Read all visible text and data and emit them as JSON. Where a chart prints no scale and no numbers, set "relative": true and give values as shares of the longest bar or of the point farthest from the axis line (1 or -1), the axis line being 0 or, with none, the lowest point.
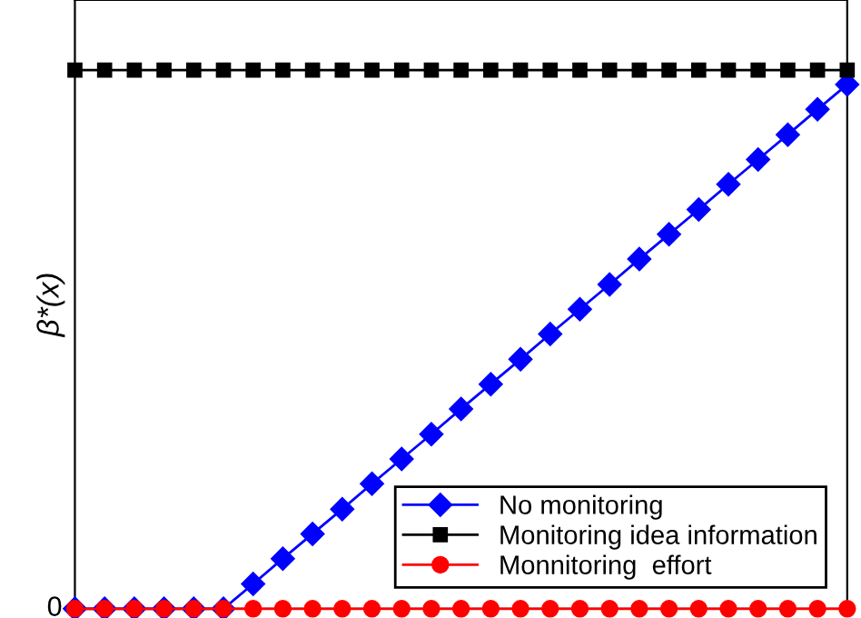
{
  "chart_data": {
    "type": "line",
    "ylabel": "β*(x)",
    "relative": true,
    "annotations": [
      "0"
    ],
    "categories": [
      null,
      null,
      null,
      null,
      null,
      null,
      null,
      null,
      null,
      null,
      null,
      null,
      null,
      null,
      null,
      null,
      null,
      null,
      null,
      null,
      null,
      null,
      null,
      null,
      null,
      null,
      null
    ],
    "series": [
      {
        "name": "No monitoring",
        "color": "#0000ff",
        "marker": "diamond",
        "values": [
          0,
          0,
          0,
          0,
          0,
          0,
          0.046,
          0.093,
          0.139,
          0.185,
          0.232,
          0.278,
          0.324,
          0.371,
          0.417,
          0.463,
          0.51,
          0.556,
          0.602,
          0.649,
          0.695,
          0.741,
          0.788,
          0.834,
          0.88,
          0.927,
          0.973
        ]
      },
      {
        "name": "Monitoring idea information",
        "color": "#000000",
        "marker": "square",
        "values": [
          1,
          1,
          1,
          1,
          1,
          1,
          1,
          1,
          1,
          1,
          1,
          1,
          1,
          1,
          1,
          1,
          1,
          1,
          1,
          1,
          1,
          1,
          1,
          1,
          1,
          1,
          1
        ]
      },
      {
        "name": "Monnitoring  effort",
        "color": "#ff0000",
        "marker": "circle",
        "values": [
          0,
          0,
          0,
          0,
          0,
          0,
          0,
          0,
          0,
          0,
          0,
          0,
          0,
          0,
          0,
          0,
          0,
          0,
          0,
          0,
          0,
          0,
          0,
          0,
          0,
          0,
          0
        ]
      }
    ],
    "legend": "bottom right",
    "grid": false,
    "line_style": "solid"
  }
}
